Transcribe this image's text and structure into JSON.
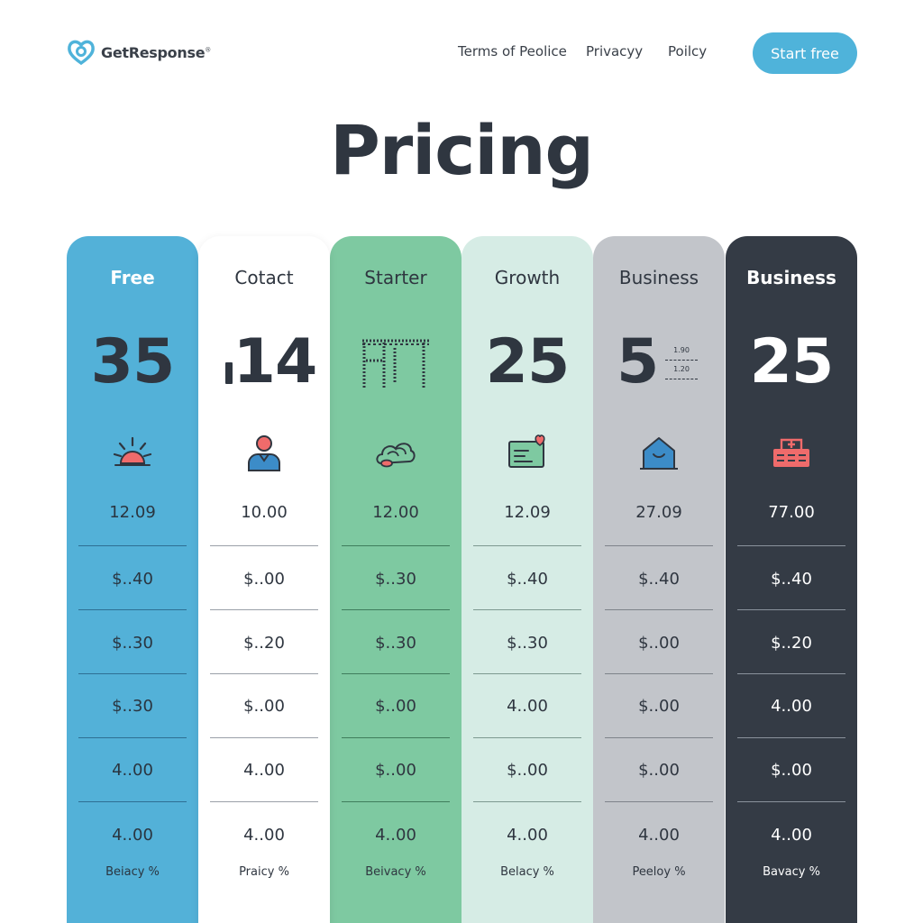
{
  "header": {
    "brand": "GetResponse",
    "brand_mark": "®",
    "nav": [
      "Terms of Peolice",
      "Privacyy",
      "Poilcy"
    ],
    "cta": "Start free"
  },
  "page_title": "Pricing",
  "plans": [
    {
      "name": "Free",
      "price": "35",
      "icon": "sun-icon",
      "values": [
        "12.09",
        "$..40",
        "$..30",
        "$..30",
        "4..00",
        "4..00"
      ],
      "footer": "Beiacy %"
    },
    {
      "name": "Cotact",
      "price": "14",
      "icon": "user-icon",
      "values": [
        "10.00",
        "$..00",
        "$..20",
        "$..00",
        "4..00",
        "4..00"
      ],
      "footer": "Praicy %"
    },
    {
      "name": "Starter",
      "price": "",
      "icon": "cloud-icon",
      "values": [
        "12.00",
        "$..30",
        "$..30",
        "$..00",
        "$..00",
        "4..00"
      ],
      "footer": "Beivacy %"
    },
    {
      "name": "Growth",
      "price": "25",
      "icon": "message-heart-icon",
      "values": [
        "12.09",
        "$..40",
        "$..30",
        "4..00",
        "$..00",
        "4..00"
      ],
      "footer": "Belacy %"
    },
    {
      "name": "Business",
      "price": "5",
      "icon": "home-icon",
      "price_notes": [
        "1.90",
        "1.20"
      ],
      "values": [
        "27.09",
        "$..40",
        "$..00",
        "$..00",
        "$..00",
        "4..00"
      ],
      "footer": "Peeloy %"
    },
    {
      "name": "Business",
      "price": "25",
      "icon": "medical-box-icon",
      "values": [
        "77.00",
        "$..40",
        "$..20",
        "4..00",
        "$..00",
        "4..00"
      ],
      "footer": "Bavacy %"
    }
  ],
  "colors": {
    "free": "#53b1d8",
    "contact": "#ffffff",
    "starter": "#7ec9a1",
    "growth": "#d6ece5",
    "business": "#c2c5ca",
    "business_dark": "#343b45",
    "accent": "#4fb3da",
    "icon_red": "#ef6b6b",
    "icon_blue": "#3c8cc8"
  }
}
